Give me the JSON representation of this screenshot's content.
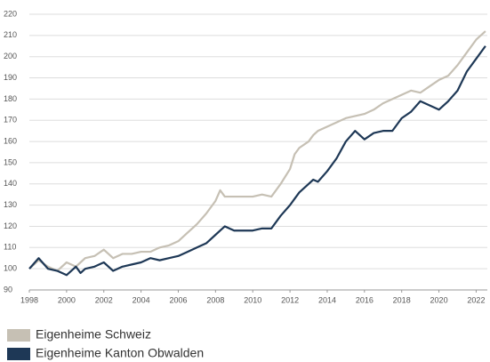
{
  "chart_data": {
    "type": "line",
    "x": [
      1998,
      1998.5,
      1999,
      1999.5,
      2000,
      2000.5,
      2000.75,
      2001,
      2001.5,
      2002,
      2002.5,
      2003,
      2003.5,
      2004,
      2004.5,
      2005,
      2005.5,
      2006,
      2006.5,
      2007,
      2007.5,
      2008,
      2008.25,
      2008.5,
      2009,
      2009.5,
      2010,
      2010.5,
      2011,
      2011.5,
      2012,
      2012.25,
      2012.5,
      2013,
      2013.25,
      2013.5,
      2014,
      2014.5,
      2015,
      2015.5,
      2016,
      2016.5,
      2017,
      2017.5,
      2018,
      2018.5,
      2019,
      2019.5,
      2020,
      2020.5,
      2021,
      2021.5,
      2022,
      2022.5
    ],
    "series": [
      {
        "name": "Eigenheime Schweiz",
        "color": "#c6c0b4",
        "values": [
          100,
          104,
          101,
          99,
          103,
          101,
          103,
          105,
          106,
          109,
          105,
          107,
          107,
          108,
          108,
          110,
          111,
          113,
          117,
          121,
          126,
          132,
          137,
          134,
          134,
          134,
          134,
          135,
          134,
          140,
          147,
          154,
          157,
          160,
          163,
          165,
          167,
          169,
          171,
          172,
          173,
          175,
          178,
          180,
          182,
          184,
          183,
          186,
          189,
          191,
          196,
          202,
          208,
          212
        ]
      },
      {
        "name": "Eigenheime Kanton Obwalden",
        "color": "#1e3856",
        "values": [
          100,
          105,
          100,
          99,
          97,
          101,
          98,
          100,
          101,
          103,
          99,
          101,
          102,
          103,
          105,
          104,
          105,
          106,
          108,
          110,
          112,
          116,
          118,
          120,
          118,
          118,
          118,
          119,
          119,
          125,
          130,
          133,
          136,
          140,
          142,
          141,
          146,
          152,
          160,
          165,
          161,
          164,
          165,
          165,
          171,
          174,
          179,
          177,
          175,
          179,
          184,
          193,
          199,
          205
        ]
      }
    ],
    "xlim": [
      1998,
      2022.6
    ],
    "xticks": [
      1998,
      2000,
      2002,
      2004,
      2006,
      2008,
      2010,
      2012,
      2014,
      2016,
      2018,
      2020,
      2022
    ],
    "ylim": [
      90,
      220
    ],
    "yticks": [
      90,
      100,
      110,
      120,
      130,
      140,
      150,
      160,
      170,
      180,
      190,
      200,
      210,
      220
    ],
    "grid": true
  }
}
